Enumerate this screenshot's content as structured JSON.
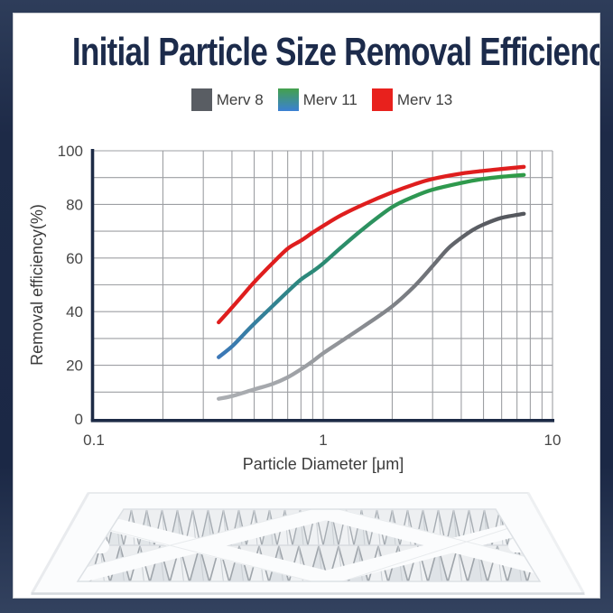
{
  "title": "Initial Particle Size Removal Efficiency",
  "legend": {
    "items": [
      {
        "label": "Merv 8",
        "swatch": {
          "type": "solid",
          "color": "#595d63"
        }
      },
      {
        "label": "Merv 11",
        "swatch": {
          "type": "gradient",
          "from": "#44a14c",
          "to": "#3b80d4"
        }
      },
      {
        "label": "Merv 13",
        "swatch": {
          "type": "solid",
          "color": "#e8211d"
        }
      }
    ]
  },
  "chart_data": {
    "type": "line",
    "title": "",
    "xlabel": "Particle Diameter [μm]",
    "ylabel": "Removal efficiency(%)",
    "x_scale": "log",
    "xlim": [
      0.1,
      10
    ],
    "ylim": [
      0,
      100
    ],
    "x_tick_values": [
      0.1,
      1,
      10
    ],
    "x_tick_labels": [
      "0.1",
      "1",
      "10"
    ],
    "y_tick_values": [
      0,
      20,
      40,
      60,
      80,
      100
    ],
    "y_grid_step": 10,
    "x_minor_grid": "log-decades",
    "grid_color": "#9d9fa3",
    "axis_color": "#1d2b46",
    "tick_label_color": "#474747",
    "axis_label_color": "#3c3c3c",
    "legend_position": "top-center",
    "series": [
      {
        "name": "Merv 8",
        "stroke": {
          "type": "gradient-y",
          "top": "#54575d",
          "bottom": "#abaeb2"
        },
        "points": [
          [
            0.35,
            7.5
          ],
          [
            0.4,
            8.5
          ],
          [
            0.5,
            11
          ],
          [
            0.6,
            13
          ],
          [
            0.7,
            15.5
          ],
          [
            0.8,
            18.5
          ],
          [
            0.9,
            21.5
          ],
          [
            1.0,
            24.5
          ],
          [
            1.2,
            29
          ],
          [
            1.5,
            34.5
          ],
          [
            2.0,
            42
          ],
          [
            2.5,
            49.5
          ],
          [
            3.0,
            57
          ],
          [
            3.5,
            63.5
          ],
          [
            4.0,
            67.5
          ],
          [
            4.5,
            70.5
          ],
          [
            5.0,
            72.5
          ],
          [
            6.0,
            75
          ],
          [
            7.5,
            76.5
          ]
        ]
      },
      {
        "name": "Merv 11",
        "stroke": {
          "type": "gradient-y",
          "top": "#2f9b48",
          "mid": "#2b8a74",
          "bottom": "#3c78b8"
        },
        "points": [
          [
            0.35,
            23
          ],
          [
            0.4,
            27
          ],
          [
            0.45,
            31.5
          ],
          [
            0.5,
            35.5
          ],
          [
            0.6,
            42
          ],
          [
            0.7,
            47.5
          ],
          [
            0.8,
            52
          ],
          [
            0.9,
            55
          ],
          [
            1.0,
            58
          ],
          [
            1.2,
            64
          ],
          [
            1.5,
            71
          ],
          [
            2.0,
            79
          ],
          [
            2.5,
            83
          ],
          [
            3.0,
            85.5
          ],
          [
            4.0,
            88
          ],
          [
            5.0,
            89.5
          ],
          [
            6.0,
            90.3
          ],
          [
            7.5,
            91
          ]
        ]
      },
      {
        "name": "Merv 13",
        "stroke": {
          "type": "solid",
          "color": "#df1e1e"
        },
        "points": [
          [
            0.35,
            36
          ],
          [
            0.4,
            41.5
          ],
          [
            0.45,
            46.5
          ],
          [
            0.5,
            51
          ],
          [
            0.6,
            58
          ],
          [
            0.7,
            63.5
          ],
          [
            0.8,
            66.5
          ],
          [
            0.9,
            69.5
          ],
          [
            1.0,
            72
          ],
          [
            1.2,
            76
          ],
          [
            1.5,
            80
          ],
          [
            2.0,
            84.5
          ],
          [
            2.5,
            87.5
          ],
          [
            3.0,
            89.5
          ],
          [
            4.0,
            91.5
          ],
          [
            5.0,
            92.5
          ],
          [
            6.0,
            93.2
          ],
          [
            7.5,
            94
          ]
        ]
      }
    ]
  },
  "footer": {
    "image_alt": "Pleated air filter with white diamond-lattice frame"
  }
}
